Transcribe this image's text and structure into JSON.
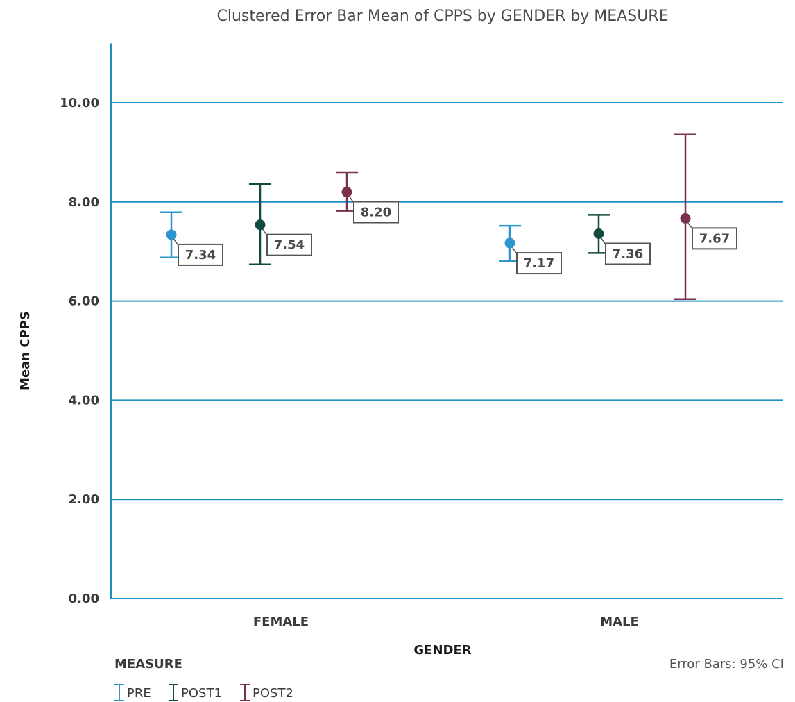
{
  "chart_data": {
    "type": "error-bar",
    "title": "Clustered Error Bar Mean of CPPS by GENDER by MEASURE",
    "xlabel": "GENDER",
    "ylabel": "Mean CPPS",
    "ylim": [
      0,
      11.2
    ],
    "yticks": [
      0,
      2,
      4,
      6,
      8,
      10
    ],
    "ytick_labels": [
      "0.00",
      "2.00",
      "4.00",
      "6.00",
      "8.00",
      "10.00"
    ],
    "grid": true,
    "categories": [
      "FEMALE",
      "MALE"
    ],
    "legend_title": "MEASURE",
    "legend_position": "bottom-left",
    "note": "Error Bars: 95% CI",
    "series": [
      {
        "name": "PRE",
        "color": "#2E95CF",
        "values": [
          7.34,
          7.17
        ],
        "labels": [
          "7.34",
          "7.17"
        ],
        "ci_low": [
          6.88,
          6.81
        ],
        "ci_high": [
          7.79,
          7.52
        ]
      },
      {
        "name": "POST1",
        "color": "#124A3F",
        "values": [
          7.54,
          7.36
        ],
        "labels": [
          "7.54",
          "7.36"
        ],
        "ci_low": [
          6.74,
          6.97
        ],
        "ci_high": [
          8.36,
          7.74
        ]
      },
      {
        "name": "POST2",
        "color": "#7A3150",
        "values": [
          8.2,
          7.67
        ],
        "labels": [
          "8.20",
          "7.67"
        ],
        "ci_low": [
          7.82,
          6.04
        ],
        "ci_high": [
          8.6,
          9.36
        ]
      }
    ]
  }
}
